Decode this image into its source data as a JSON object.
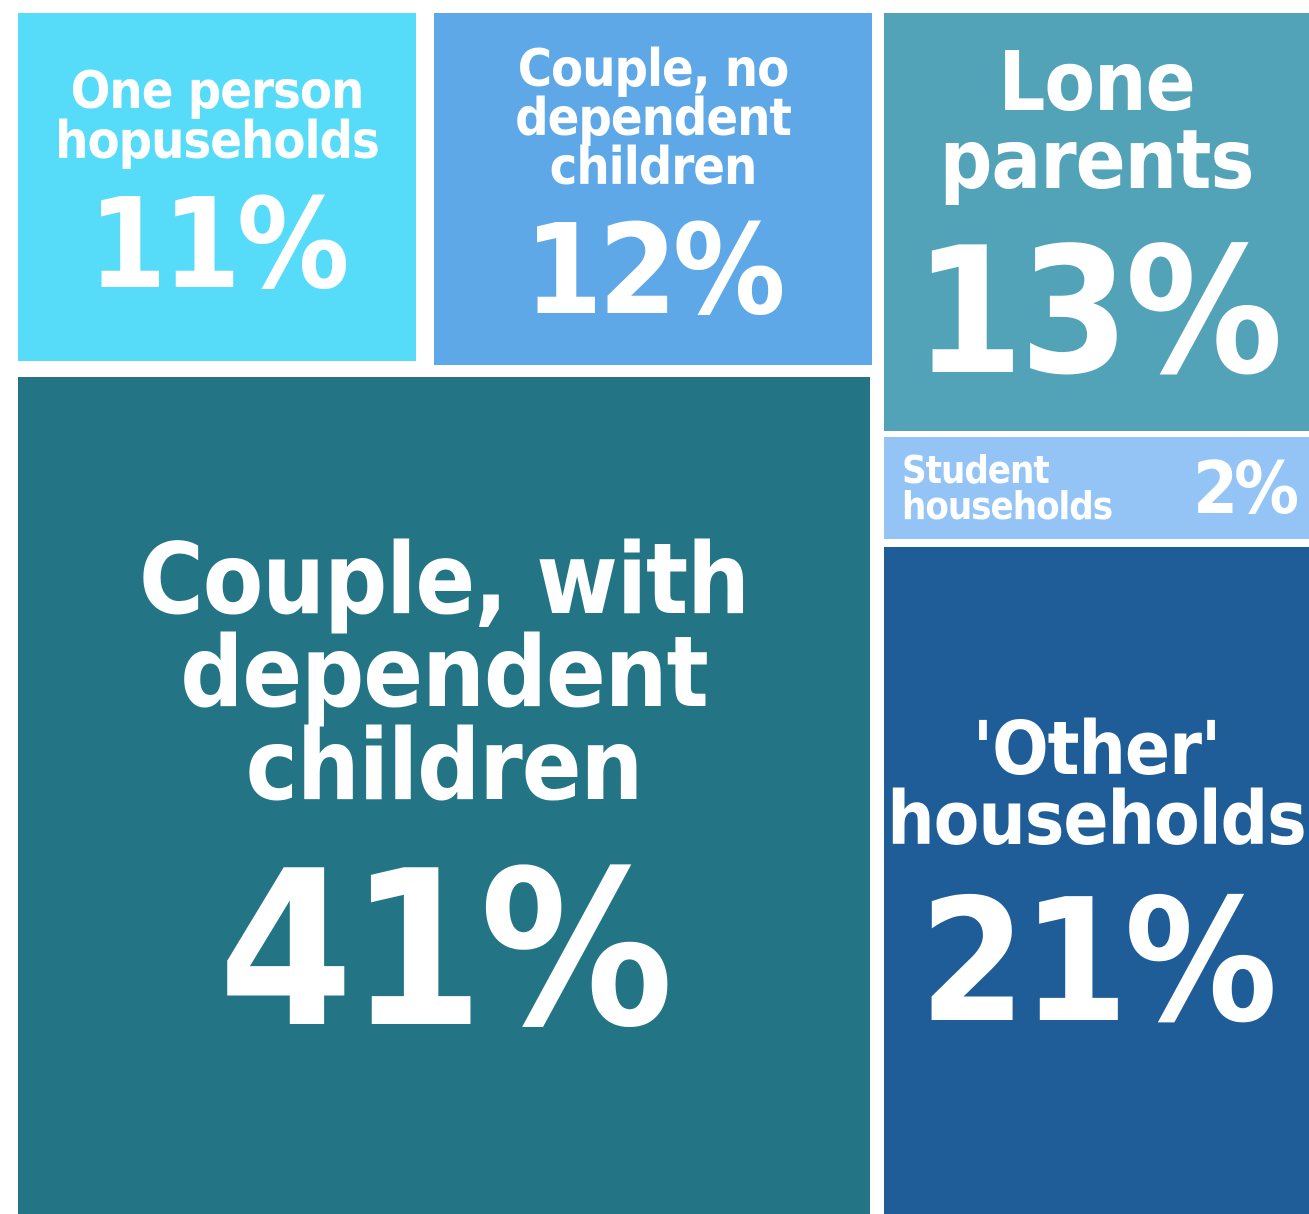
{
  "chart_data": {
    "type": "treemap",
    "categories": [
      "One person hopuseholds",
      "Couple, no dependent children",
      "Lone parents",
      "Student households",
      "Couple, with dependent children",
      "'Other' households"
    ],
    "values": [
      11,
      12,
      13,
      2,
      41,
      21
    ],
    "value_labels": [
      "11%",
      "12%",
      "13%",
      "2%",
      "41%",
      "21%"
    ],
    "colors": [
      "#56dbf9",
      "#5ea8e8",
      "#52a3b8",
      "#93c4f5",
      "#237585",
      "#1f5d99"
    ]
  }
}
